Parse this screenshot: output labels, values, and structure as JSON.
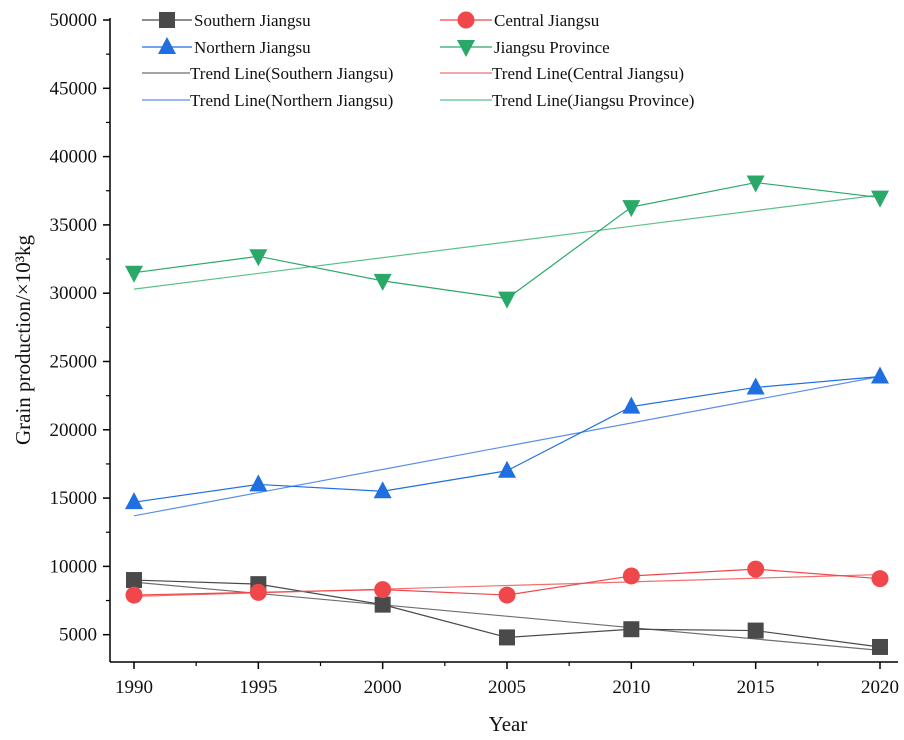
{
  "chart_data": {
    "type": "line",
    "xlabel": "Year",
    "ylabel": "Grain production/×10³kg",
    "x": [
      1990,
      1995,
      2000,
      2005,
      2010,
      2015,
      2020
    ],
    "xlim": [
      1990,
      2020
    ],
    "ylim": [
      3000,
      50000
    ],
    "y_ticks": [
      5000,
      10000,
      15000,
      20000,
      25000,
      30000,
      35000,
      40000,
      45000,
      50000
    ],
    "grid": false,
    "legend_position": "top",
    "series": [
      {
        "name": "Southern Jiangsu",
        "marker": "square",
        "color": "#4a4a4a",
        "values": [
          9000,
          8700,
          7200,
          4800,
          5400,
          5300,
          4100
        ]
      },
      {
        "name": "Central Jiangsu",
        "marker": "circle",
        "color": "#f0474a",
        "values": [
          7900,
          8100,
          8300,
          7900,
          9300,
          9800,
          9100
        ]
      },
      {
        "name": "Northern Jiangsu",
        "marker": "triangle-up",
        "color": "#1f6fe0",
        "values": [
          14700,
          16000,
          15500,
          17000,
          21700,
          23100,
          23900
        ]
      },
      {
        "name": "Jiangsu Province",
        "marker": "triangle-down",
        "color": "#2aa868",
        "values": [
          31500,
          32700,
          30900,
          29600,
          36300,
          38100,
          37000
        ]
      }
    ],
    "trend_lines": [
      {
        "name": "Trend Line(Southern Jiangsu)",
        "color": "#6e6e6e",
        "start": [
          1990,
          8850
        ],
        "end": [
          2020,
          3850
        ]
      },
      {
        "name": "Trend Line(Central Jiangsu)",
        "color": "#f07070",
        "start": [
          1990,
          7800
        ],
        "end": [
          2020,
          9400
        ]
      },
      {
        "name": "Trend Line(Northern Jiangsu)",
        "color": "#5a8ee8",
        "start": [
          1990,
          13700
        ],
        "end": [
          2020,
          23900
        ]
      },
      {
        "name": "Trend Line(Jiangsu Province)",
        "color": "#5cc08a",
        "start": [
          1990,
          30300
        ],
        "end": [
          2020,
          37200
        ]
      }
    ]
  }
}
